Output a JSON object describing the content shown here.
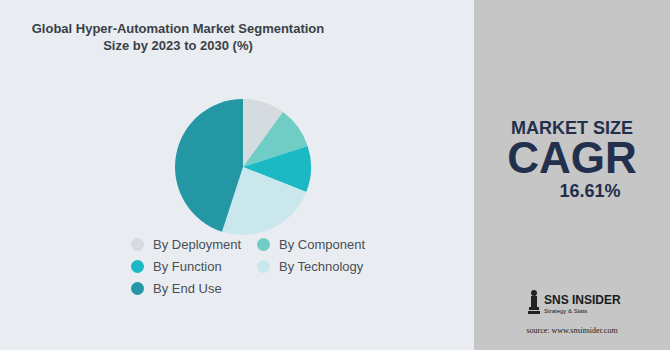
{
  "chart_data": {
    "type": "pie",
    "title": "Global Hyper-Automation Market Segmentation Size by 2023 to 2030 (%)",
    "categories": [
      "By Deployment",
      "By Component",
      "By Function",
      "By Technology",
      "By End Use"
    ],
    "values": [
      10,
      10,
      11,
      24,
      45
    ],
    "colors": [
      "#d6dbdf",
      "#6fcdc5",
      "#1ab9c4",
      "#c9e7ec",
      "#2497a5"
    ],
    "legend": "bottom",
    "annotations": {
      "market_size": "MARKET SIZE",
      "cagr_label": "CAGR",
      "cagr": "16.61%",
      "brand": "SNS INSIDER",
      "tagline": "Strategy & Stats",
      "source": "source: www.snsinsider.com"
    }
  }
}
